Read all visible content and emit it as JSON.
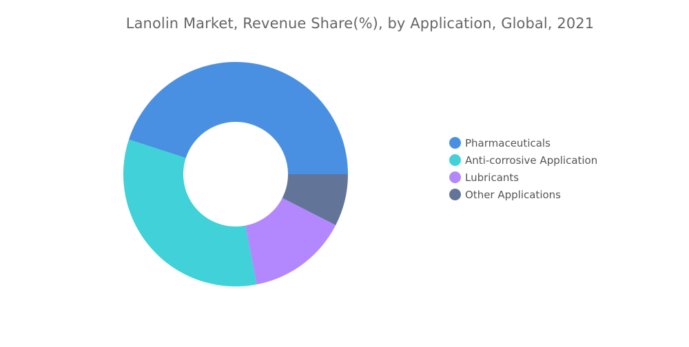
{
  "chart_data": {
    "type": "pie",
    "title": "Lanolin Market, Revenue Share(%), by Application, Global, 2021",
    "donut": true,
    "legend_position": "right",
    "categories": [
      "Pharmaceuticals",
      "Anti-corrosive Application",
      "Lubricants",
      "Other Applications"
    ],
    "values": [
      45,
      33,
      14.5,
      7.5
    ],
    "colors": [
      "#4a90e2",
      "#40d1d9",
      "#b388ff",
      "#627599"
    ]
  }
}
